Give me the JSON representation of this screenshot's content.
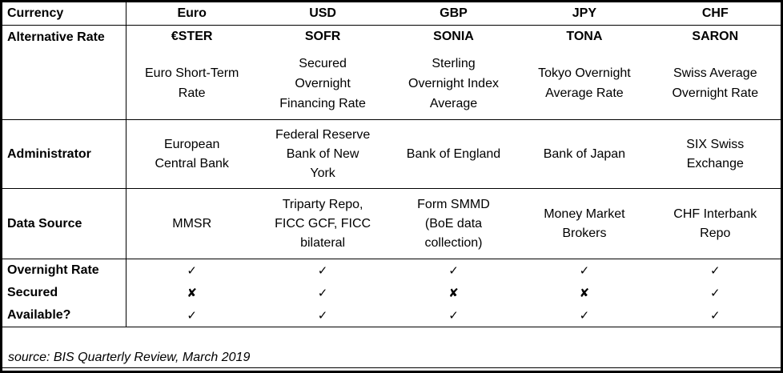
{
  "header": {
    "row_label": "Currency"
  },
  "rows": {
    "alternative_rate": "Alternative Rate",
    "administrator": "Administrator",
    "data_source": "Data Source",
    "overnight_rate": "Overnight Rate",
    "secured": "Secured",
    "available": "Available?"
  },
  "columns": [
    {
      "currency": "Euro",
      "code": "€STER",
      "name": "Euro Short-Term\nRate",
      "administrator": "European\nCentral Bank",
      "data_source": "MMSR",
      "overnight_rate_mark": "✓",
      "secured_mark": "✘",
      "available_mark": "✓"
    },
    {
      "currency": "USD",
      "code": "SOFR",
      "name": "Secured\nOvernight\nFinancing Rate",
      "administrator": "Federal Reserve\nBank of New\nYork",
      "data_source": "Triparty Repo,\nFICC GCF, FICC\nbilateral",
      "overnight_rate_mark": "✓",
      "secured_mark": "✓",
      "available_mark": "✓"
    },
    {
      "currency": "GBP",
      "code": "SONIA",
      "name": "Sterling\nOvernight Index\nAverage",
      "administrator": "Bank of England",
      "data_source": "Form SMMD\n(BoE data\ncollection)",
      "overnight_rate_mark": "✓",
      "secured_mark": "✘",
      "available_mark": "✓"
    },
    {
      "currency": "JPY",
      "code": "TONA",
      "name": "Tokyo Overnight\nAverage Rate",
      "administrator": "Bank of Japan",
      "data_source": "Money Market\nBrokers",
      "overnight_rate_mark": "✓",
      "secured_mark": "✘",
      "available_mark": "✓"
    },
    {
      "currency": "CHF",
      "code": "SARON",
      "name": "Swiss Average\nOvernight Rate",
      "administrator": "SIX Swiss\nExchange",
      "data_source": "CHF Interbank\nRepo",
      "overnight_rate_mark": "✓",
      "secured_mark": "✓",
      "available_mark": "✓"
    }
  ],
  "footer": {
    "source_text": "source: BIS Quarterly Review, March 2019"
  },
  "colors": {
    "border": "#000000",
    "background": "#ffffff",
    "text": "#000000"
  }
}
